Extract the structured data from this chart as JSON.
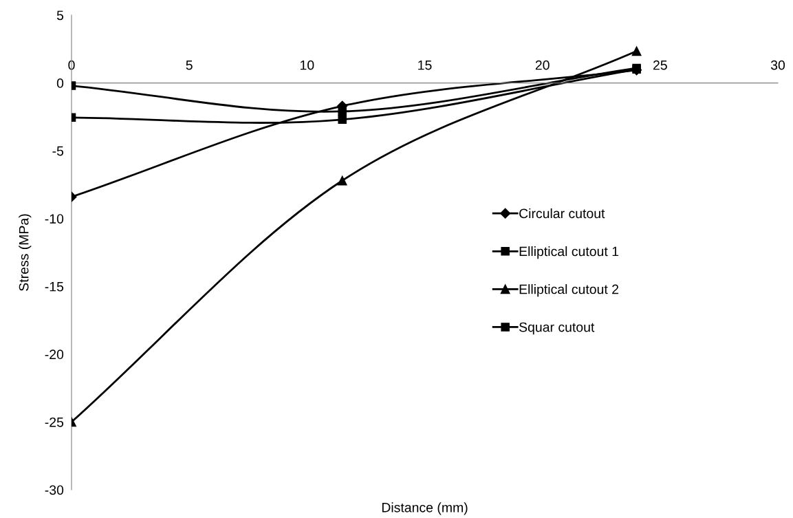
{
  "chart_data": {
    "type": "line",
    "xlabel": "Distance (mm)",
    "ylabel": "Stress (MPa)",
    "x": [
      0,
      11.5,
      24
    ],
    "series": [
      {
        "name": "Circular cutout",
        "color": "#000000",
        "marker": "diamond",
        "values": [
          -8.4,
          -1.7,
          0.95
        ]
      },
      {
        "name": "Elliptical cutout 1",
        "color": "#000000",
        "marker": "square",
        "values": [
          -2.55,
          -2.7,
          1.0
        ]
      },
      {
        "name": "Elliptical cutout 2",
        "color": "#000000",
        "marker": "triangle",
        "values": [
          -25,
          -7.2,
          2.35
        ]
      },
      {
        "name": "Squar cutout",
        "color": "#000000",
        "marker": "square",
        "values": [
          -0.2,
          -2.1,
          1.1
        ]
      }
    ],
    "xlim": [
      0,
      30
    ],
    "xticks": [
      0,
      5,
      10,
      15,
      20,
      25,
      30
    ],
    "ylim": [
      -30,
      5
    ],
    "yticks": [
      -30,
      -25,
      -20,
      -15,
      -10,
      -5,
      0,
      5
    ],
    "grid": false,
    "legend": "right",
    "line_style": "solid"
  }
}
